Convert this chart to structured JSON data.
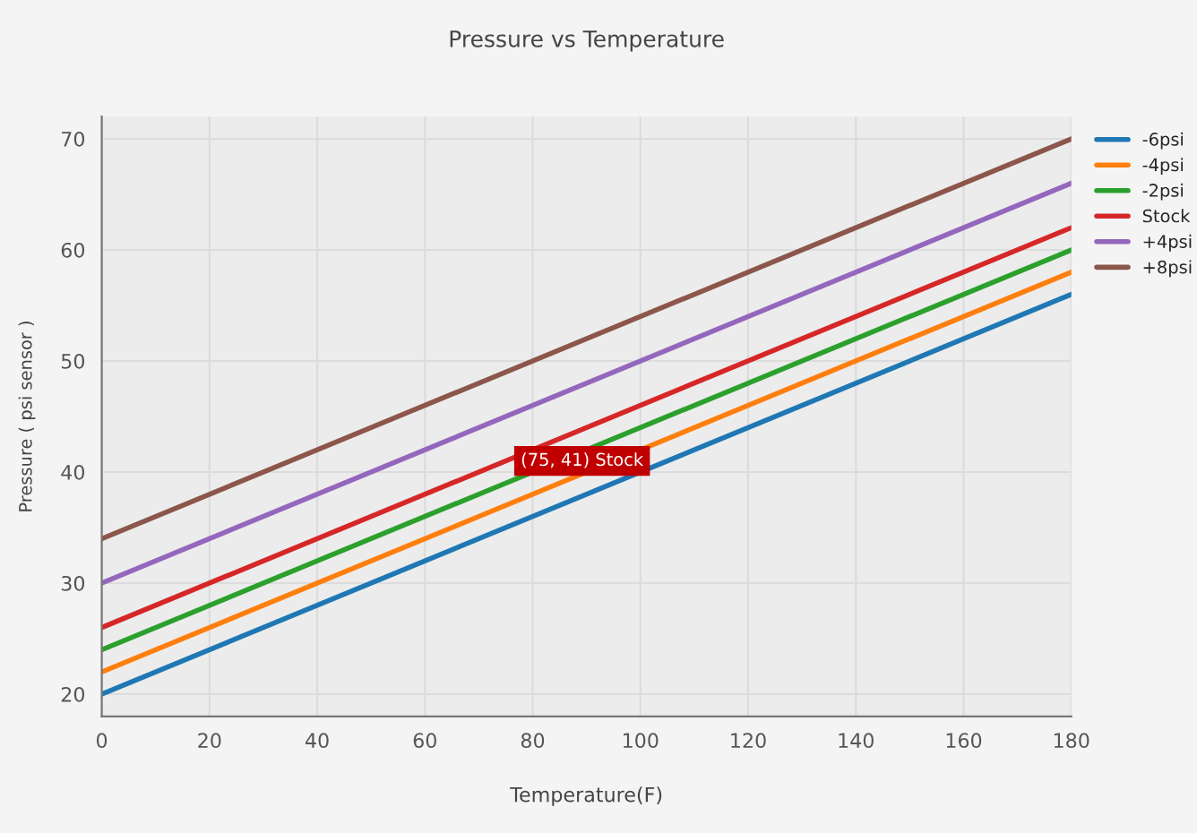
{
  "chart_data": {
    "type": "line",
    "title": "Pressure vs Temperature",
    "xlabel": "Temperature(F)",
    "ylabel": "Pressure ( psi sensor )",
    "x": [
      0,
      180
    ],
    "xlim": [
      0,
      180
    ],
    "xticks": [
      0,
      20,
      40,
      60,
      80,
      100,
      120,
      140,
      160,
      180
    ],
    "ylim": [
      18,
      72
    ],
    "yticks": [
      20,
      30,
      40,
      50,
      60,
      70
    ],
    "grid": true,
    "legend": "top right",
    "marker": "none",
    "line_style": "solid",
    "series": [
      {
        "name": "-6psi",
        "color": "#1f77b4",
        "values": [
          20,
          56
        ]
      },
      {
        "name": "-4psi",
        "color": "#ff7f0e",
        "values": [
          22,
          58
        ]
      },
      {
        "name": "-2psi",
        "color": "#2ca02c",
        "values": [
          24,
          60
        ]
      },
      {
        "name": "Stock",
        "color": "#d62728",
        "values": [
          26,
          62
        ]
      },
      {
        "name": "+4psi",
        "color": "#9467bd",
        "values": [
          30,
          66
        ]
      },
      {
        "name": "+8psi",
        "color": "#8c564b",
        "values": [
          34,
          70
        ]
      }
    ],
    "annotations": [
      {
        "text": "(75, 41) Stock",
        "x": 75,
        "y": 41
      }
    ]
  }
}
